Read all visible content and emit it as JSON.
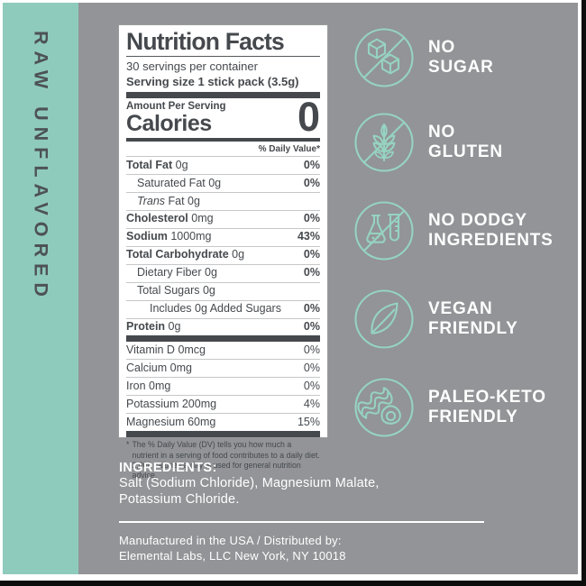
{
  "colors": {
    "mint": "#8fcbbd",
    "icon_mint": "#96d3c1",
    "background_gray": "#929497",
    "label_ink": "#45494d",
    "sidebar_ink": "#4d5257",
    "footer_white": "#ffffff",
    "edge_black": "#0d0d0d"
  },
  "sidebar": {
    "label": "RAW UNFLAVORED"
  },
  "nutrition_facts": {
    "title": "Nutrition Facts",
    "servings_line": "30 servings per container",
    "serving_size_line": "Serving size 1 stick pack (3.5g)",
    "amount_per_serving": "Amount Per Serving",
    "calories_label": "Calories",
    "calories_value": "0",
    "daily_value_header": "% Daily Value*",
    "nutrient_rows": [
      {
        "label": "Total Fat",
        "amount": "0g",
        "dv": "0%",
        "bold": true,
        "indent": 0,
        "dv_bold": true
      },
      {
        "label": "Saturated Fat",
        "amount": "0g",
        "dv": "0%",
        "bold": false,
        "indent": 1,
        "dv_bold": true
      },
      {
        "italic": "Trans",
        "label": "Fat",
        "amount": "0g",
        "dv": "",
        "bold": false,
        "indent": 1,
        "dv_bold": false
      },
      {
        "label": "Cholesterol",
        "amount": "0mg",
        "dv": "0%",
        "bold": true,
        "indent": 0,
        "dv_bold": true
      },
      {
        "label": "Sodium",
        "amount": "1000mg",
        "dv": "43%",
        "bold": true,
        "indent": 0,
        "dv_bold": true
      },
      {
        "label": "Total Carbohydrate",
        "amount": "0g",
        "dv": "0%",
        "bold": true,
        "indent": 0,
        "dv_bold": true
      },
      {
        "label": "Dietary Fiber",
        "amount": "0g",
        "dv": "0%",
        "bold": false,
        "indent": 1,
        "dv_bold": true
      },
      {
        "label": "Total Sugars",
        "amount": "0g",
        "dv": "",
        "bold": false,
        "indent": 1,
        "dv_bold": false
      },
      {
        "label": "Includes 0g Added Sugars",
        "amount": "",
        "dv": "0%",
        "bold": false,
        "indent": 2,
        "dv_bold": true
      },
      {
        "label": "Protein",
        "amount": "0g",
        "dv": "0%",
        "bold": true,
        "indent": 0,
        "dv_bold": true
      }
    ],
    "micronutrient_rows": [
      {
        "label": "Vitamin D",
        "amount": "0mcg",
        "dv": "0%"
      },
      {
        "label": "Calcium",
        "amount": "0mg",
        "dv": "0%"
      },
      {
        "label": "Iron",
        "amount": "0mg",
        "dv": "0%"
      },
      {
        "label": "Potassium",
        "amount": "200mg",
        "dv": "4%"
      },
      {
        "label": "Magnesium",
        "amount": "60mg",
        "dv": "15%"
      }
    ],
    "footnote_marker": "*",
    "footnote": "The % Daily Value (DV) tells you how much a nutrient in a serving of food contributes to a daily diet. 2,000 calories a day is used for general nutrition advice."
  },
  "claims": [
    {
      "icon": "no-sugar-icon",
      "slash": true,
      "lines": [
        "NO",
        "SUGAR"
      ]
    },
    {
      "icon": "no-gluten-icon",
      "slash": true,
      "lines": [
        "NO",
        "GLUTEN"
      ]
    },
    {
      "icon": "no-dodgy-ingredients-icon",
      "slash": true,
      "lines": [
        "NO DODGY",
        "INGREDIENTS"
      ]
    },
    {
      "icon": "vegan-friendly-icon",
      "slash": false,
      "lines": [
        "VEGAN",
        "FRIENDLY"
      ]
    },
    {
      "icon": "paleo-keto-friendly-icon",
      "slash": false,
      "lines": [
        "PALEO-KETO",
        "FRIENDLY"
      ]
    }
  ],
  "footer": {
    "ingredients_heading": "INGREDIENTS:",
    "ingredients_lines": [
      "Salt (Sodium Chloride), Magnesium Malate,",
      "Potassium Chloride."
    ],
    "distribution_lines": [
      "Manufactured in the USA / Distributed by:",
      "Elemental Labs, LLC New York, NY 10018"
    ]
  }
}
